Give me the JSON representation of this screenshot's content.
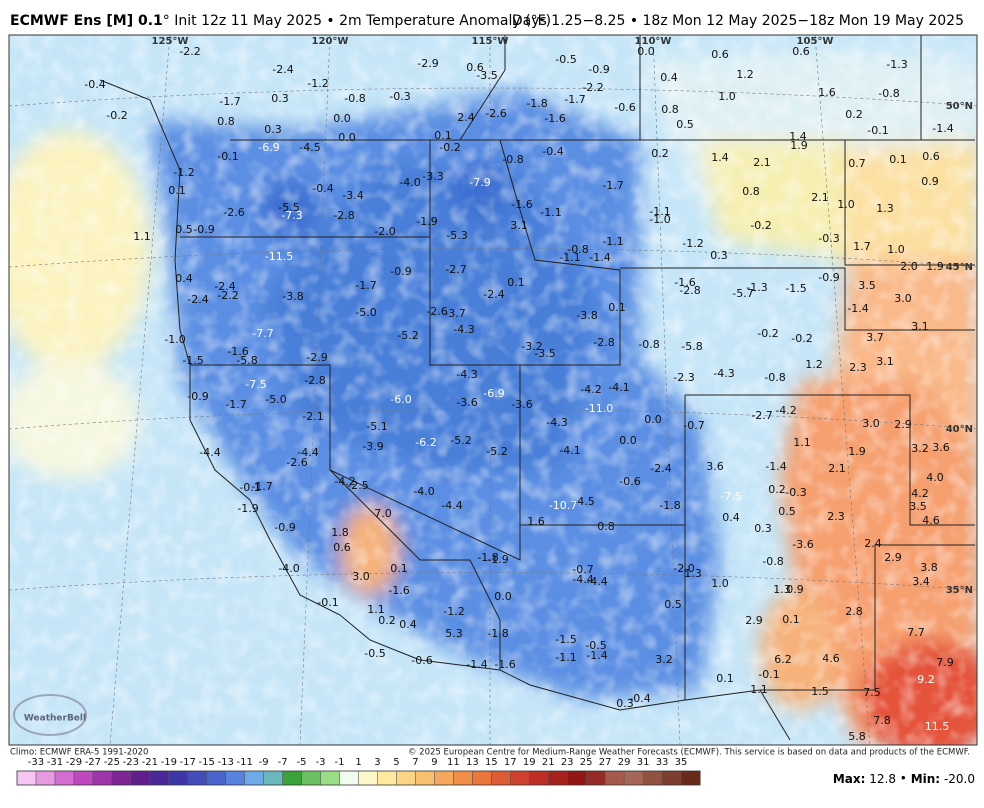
{
  "header": {
    "title_bold": "ECMWF Ens [M] 0.1",
    "title_rest": "° Init 12z 11 May 2025 • 2m Temperature Anomaly (°F)",
    "valid": "Days 1.25−8.25 • 18z Mon 12 May 2025−18z Mon 19 May 2025"
  },
  "map": {
    "longitudes": [
      "125°W",
      "120°W",
      "115°W",
      "110°W",
      "105°W"
    ],
    "latitudes": [
      "50°N",
      "45°N",
      "40°N",
      "35°N"
    ],
    "values": [
      "-2.2",
      "-0.4",
      "-2.4",
      "-1.2",
      "-2.9",
      "0.6",
      "-3.5",
      "-0.5",
      "-0.9",
      "0.0",
      "0.6",
      "0.6",
      "-1.3",
      "0.4",
      "1.2",
      "-2.2",
      "-1.7",
      "0.3",
      "-0.8",
      "-0.3",
      "-1.8",
      "-1.7",
      "-0.6",
      "0.8",
      "1.0",
      "1.6",
      "-0.8",
      "-0.2",
      "0.8",
      "0.0",
      "2.4",
      "-2.6",
      "-1.6",
      "0.5",
      "0.2",
      "-0.1",
      "-1.4",
      "0.3",
      "0.0",
      "0.1",
      "1.4",
      "1.9",
      "-6.9",
      "-4.5",
      "-0.2",
      "-0.8",
      "-0.4",
      "0.2",
      "1.4",
      "2.1",
      "0.7",
      "0.1",
      "0.6",
      "-0.1",
      "-1.2",
      "-3.3",
      "-7.9",
      "-1.7",
      "0.9",
      "0.1",
      "-0.4",
      "-3.4",
      "-4.0",
      "0.8",
      "2.1",
      "1.0",
      "1.3",
      "-2.6",
      "-5.5",
      "-7.3",
      "-2.8",
      "-1.6",
      "-1.1",
      "-1.1",
      "-1.0",
      "-1.9",
      "3.1",
      "-0.2",
      "0.5",
      "-0.9",
      "1.1",
      "-2.0",
      "-5.3",
      "-0.8",
      "-1.1",
      "-1.2",
      "-0.3",
      "1.7",
      "1.0",
      "-11.5",
      "-1.1",
      "-1.4",
      "0.3",
      "-0.9",
      "-2.7",
      "2.0",
      "1.9",
      "0.4",
      "-1.7",
      "0.1",
      "-1.6",
      "-2.8",
      "-1.3",
      "-1.5",
      "-0.9",
      "3.5",
      "-2.4",
      "-2.4",
      "-2.2",
      "-3.8",
      "-2.4",
      "-5.7",
      "3.0",
      "-5.0",
      "-2.6",
      "-3.7",
      "-3.8",
      "0.1",
      "-1.4",
      "3.1",
      "-4.3",
      "-5.2",
      "-7.7",
      "-0.2",
      "-0.2",
      "3.7",
      "-1.0",
      "-0.8",
      "-5.8",
      "-3.2",
      "-3.5",
      "-2.8",
      "-1.6",
      "-2.9",
      "-1.5",
      "-5.8",
      "3.1",
      "1.2",
      "2.3",
      "-4.3",
      "-2.3",
      "-4.3",
      "-0.8",
      "-2.8",
      "-7.5",
      "-4.2",
      "-4.1",
      "-0.9",
      "-5.0",
      "-1.7",
      "-6.0",
      "-3.6",
      "-6.9",
      "-3.6",
      "-11.0",
      "-2.1",
      "0.0",
      "-4.3",
      "-0.7",
      "-2.7",
      "-4.2",
      "3.0",
      "2.9",
      "-5.1",
      "0.0",
      "1.1",
      "-6.2",
      "-5.2",
      "1.9",
      "3.2",
      "3.6",
      "-4.4",
      "-3.9",
      "-4.1",
      "-5.2",
      "-4.4",
      "-2.6",
      "-2.4",
      "3.6",
      "-1.4",
      "2.1",
      "4.0",
      "-4.2",
      "-2.5",
      "-0.6",
      "-0.1",
      "-1.7",
      "-4.0",
      "-7.5",
      "0.2",
      "-0.3",
      "4.2",
      "-4.5",
      "-10.7",
      "-1.8",
      "-4.4",
      "3.5",
      "-1.9",
      "7.0",
      "0.4",
      "0.5",
      "2.3",
      "4.6",
      "1.6",
      "0.8",
      "-0.9",
      "0.3",
      "1.8",
      "2.4",
      "-3.6",
      "0.6",
      "-1.8",
      "-1.9",
      "2.9",
      "-0.8",
      "3.8",
      "-4.0",
      "-0.7",
      "0.1",
      "-2.0",
      "1.3",
      "-4.4",
      "-4.4",
      "1.0",
      "3.0",
      "3.4",
      "1.3",
      "0.9",
      "-1.6",
      "0.0",
      "-0.1",
      "1.1",
      "2.8",
      "-1.2",
      "0.5",
      "0.2",
      "0.4",
      "2.9",
      "0.1",
      "-1.5",
      "-0.5",
      "-1.8",
      "5.3",
      "7.7",
      "-0.5",
      "-1.1",
      "-1.4",
      "-0.6",
      "3.2",
      "6.2",
      "4.6",
      "7.9",
      "-1.4",
      "-1.6",
      "-0.1",
      "0.1",
      "9.2",
      "1.1",
      "1.5",
      "7.5",
      "-0.4",
      "0.3",
      "7.8",
      "11.5",
      "5.8"
    ]
  },
  "logo": {
    "text": "WeatherBell"
  },
  "footer": {
    "climo": "Climo: ECMWF ERA-5 1991-2020",
    "copyright": "© 2025 European Centre for Medium-Range Weather Forecasts (ECMWF). This service is based on data and products of the ECMWF.",
    "max_label": "Max:",
    "max": "12.8",
    "min_label": "Min:",
    "min": "-20.0"
  },
  "colorbar": {
    "ticks": [
      -33,
      -31,
      -29,
      -27,
      -25,
      -23,
      -21,
      -19,
      -17,
      -15,
      -13,
      -11,
      -9,
      -7,
      -5,
      -3,
      -1,
      1,
      3,
      5,
      7,
      9,
      11,
      13,
      15,
      17,
      19,
      21,
      23,
      25,
      27,
      29,
      31,
      33,
      35
    ]
  }
}
